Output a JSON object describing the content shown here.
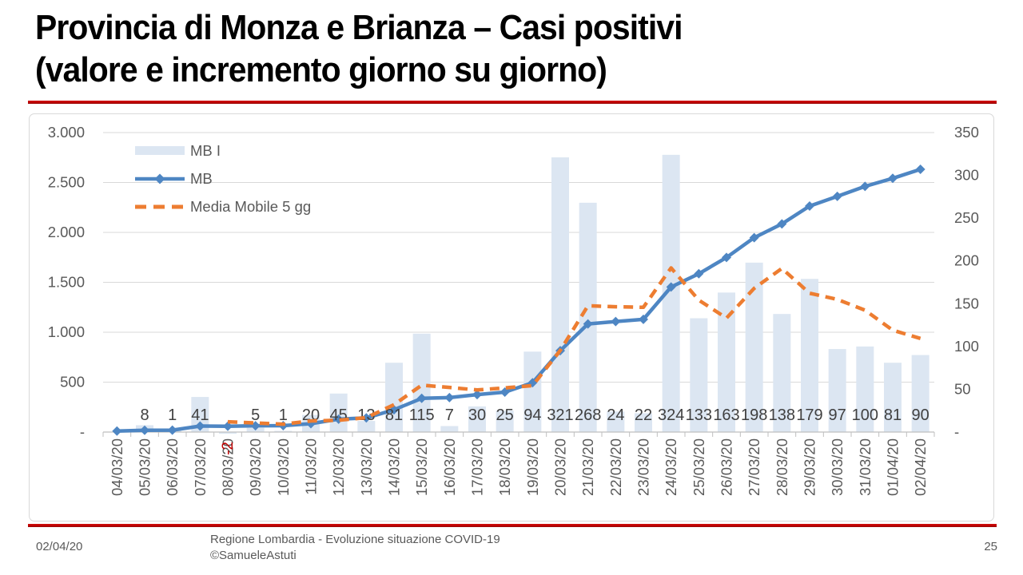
{
  "slide": {
    "title_line1": "Provincia di Monza e Brianza – Casi positivi",
    "title_line2": "(valore e incremento giorno su giorno)",
    "footer_date": "02/04/20",
    "footer_credit_line1": "Regione Lombardia - Evoluzione situazione COVID-19",
    "footer_credit_line2": "©SamueleAstuti",
    "page_number": "25",
    "accent_red": "#c00000"
  },
  "chart_data": {
    "type": "combo",
    "categories": [
      "04/03/20",
      "05/03/20",
      "06/03/20",
      "07/03/20",
      "08/03/20",
      "09/03/20",
      "10/03/20",
      "11/03/20",
      "12/03/20",
      "13/03/20",
      "14/03/20",
      "15/03/20",
      "16/03/20",
      "17/03/20",
      "18/03/20",
      "19/03/20",
      "20/03/20",
      "21/03/20",
      "22/03/20",
      "23/03/20",
      "24/03/20",
      "25/03/20",
      "26/03/20",
      "27/03/20",
      "28/03/20",
      "29/03/20",
      "30/03/20",
      "31/03/20",
      "01/04/20",
      "02/04/20"
    ],
    "series": [
      {
        "name": "MB I",
        "type": "bar",
        "axis": "right",
        "color": "#dce6f2",
        "values": [
          null,
          8,
          1,
          41,
          -2,
          5,
          1,
          20,
          45,
          13,
          81,
          115,
          7,
          30,
          25,
          94,
          321,
          268,
          24,
          22,
          324,
          133,
          163,
          198,
          138,
          179,
          97,
          100,
          81,
          90
        ]
      },
      {
        "name": "MB",
        "type": "line",
        "axis": "left",
        "color": "#4e86c3",
        "marker": "diamond",
        "values": [
          10,
          18,
          19,
          60,
          58,
          63,
          64,
          84,
          129,
          142,
          223,
          338,
          345,
          375,
          400,
          494,
          815,
          1083,
          1107,
          1129,
          1453,
          1586,
          1749,
          1947,
          2085,
          2264,
          2361,
          2461,
          2542,
          2632
        ],
        "note": "values estimated from left axis"
      },
      {
        "name": "Media Mobile 5 gg",
        "type": "line",
        "dashed": true,
        "axis": "right",
        "color": "#ed7d31",
        "values": [
          null,
          null,
          null,
          null,
          12,
          10.6,
          9.2,
          13,
          13.8,
          16.8,
          32,
          54.8,
          52.2,
          49.2,
          51.6,
          54.2,
          95.4,
          147.6,
          146.4,
          145.8,
          191.8,
          154.2,
          133.2,
          168,
          191.2,
          162.2,
          155,
          142.4,
          119,
          109.4
        ],
        "note": "5-day moving average, estimated from right axis"
      }
    ],
    "left_axis": {
      "min": 0,
      "max": 3000,
      "tick_labels": [
        "3.000",
        "2.500",
        "2.000",
        "1.500",
        "1.000",
        "500",
        "-"
      ]
    },
    "right_axis": {
      "min": 0,
      "max": 350,
      "tick_labels": [
        "350",
        "300",
        "250",
        "200",
        "150",
        "100",
        "50",
        "-"
      ]
    },
    "data_labels": {
      "color": "#404040",
      "negative_color": "#c00000"
    },
    "gridlines": true,
    "grid_color": "#d9d9d9",
    "axis_color": "#bfbfbf",
    "legend_position": "top-left"
  }
}
